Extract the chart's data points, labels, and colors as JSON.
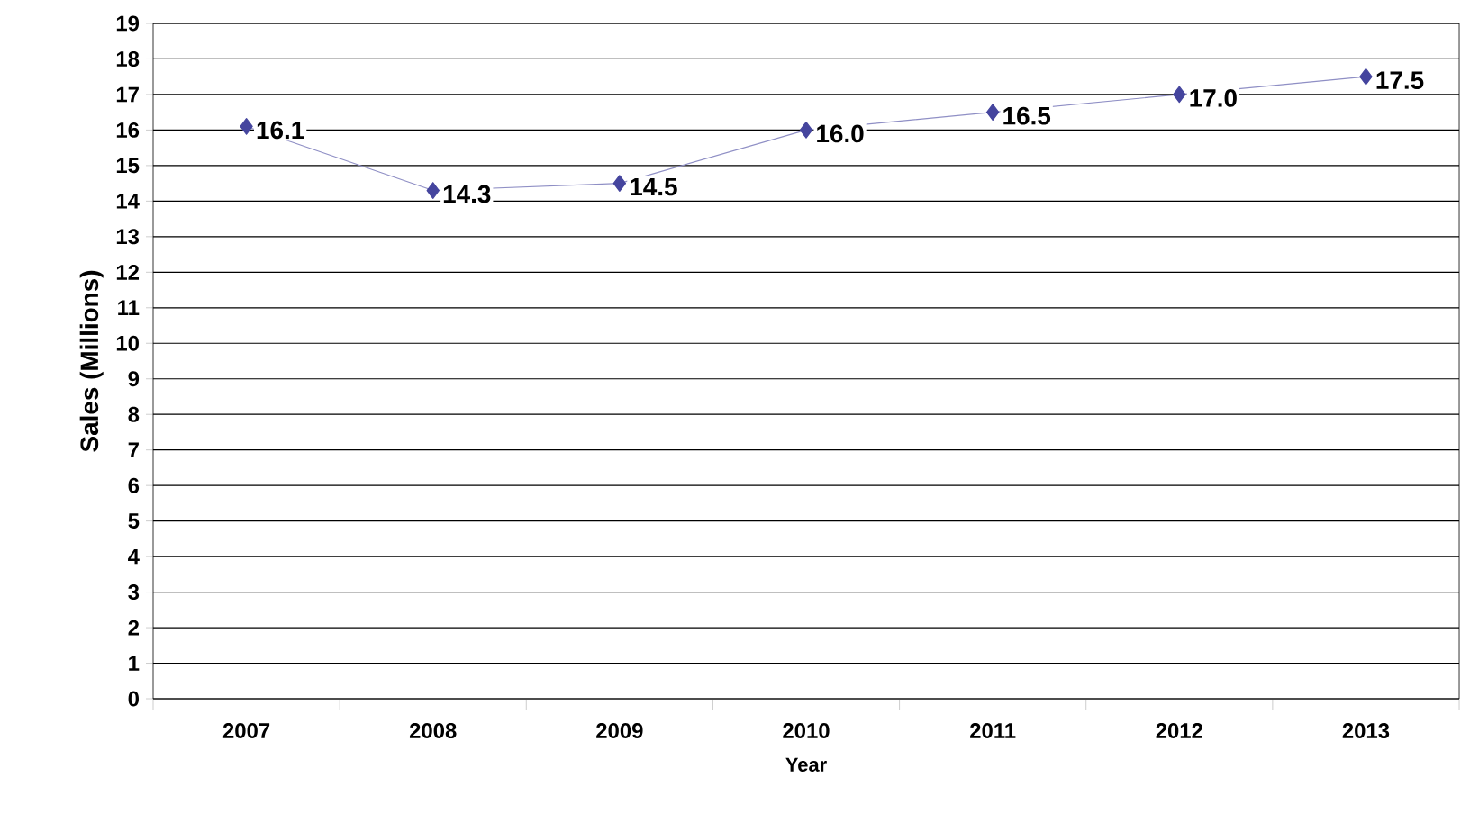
{
  "chart_data": {
    "type": "line",
    "xlabel": "Year",
    "ylabel": "Sales (Millions)",
    "categories": [
      "2007",
      "2008",
      "2009",
      "2010",
      "2011",
      "2012",
      "2013"
    ],
    "series": [
      {
        "color": "#45459e",
        "values": [
          16.1,
          14.3,
          14.5,
          16.0,
          16.5,
          17.0,
          17.5
        ],
        "value_labels": [
          "16.1",
          "14.3",
          "14.5",
          "16.0",
          "16.5",
          "17.0",
          "17.5"
        ]
      }
    ],
    "ylim": [
      0,
      19
    ],
    "yticks": [
      0,
      1,
      2,
      3,
      4,
      5,
      6,
      7,
      8,
      9,
      10,
      11,
      12,
      13,
      14,
      15,
      16,
      17,
      18,
      19
    ],
    "grid": "y",
    "marker": "diamond",
    "line_style": "solid"
  }
}
